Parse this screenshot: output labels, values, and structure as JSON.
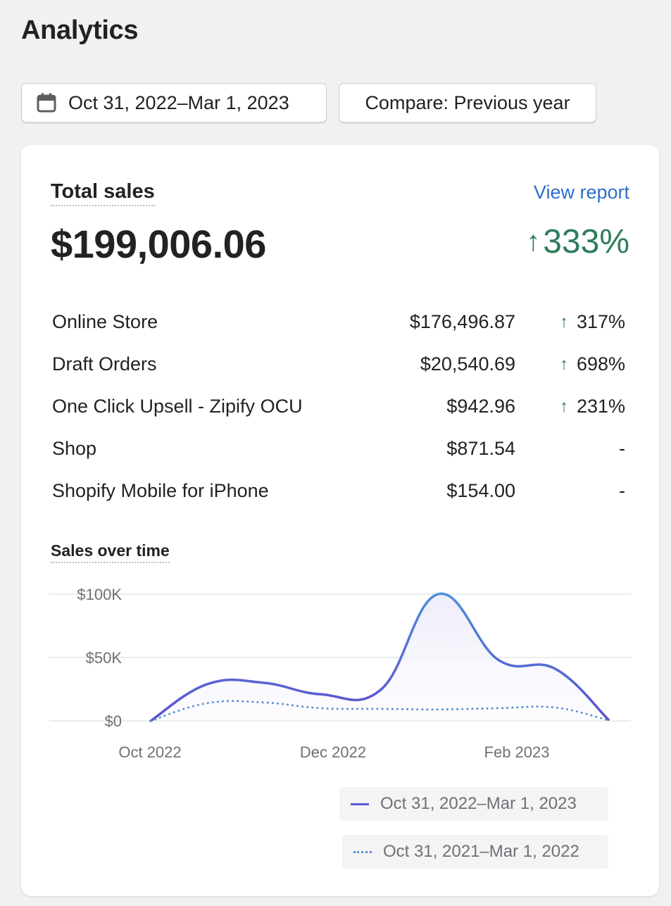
{
  "page": {
    "title": "Analytics"
  },
  "toolbar": {
    "date_range_label": "Oct 31, 2022–Mar 1, 2023",
    "compare_label": "Compare: Previous year"
  },
  "card": {
    "title": "Total sales",
    "view_report": "View report",
    "total_value": "$199,006.06",
    "total_change_arrow": "↑",
    "total_change": "333%",
    "rows": [
      {
        "name": "Online Store",
        "value": "$176,496.87",
        "arrow": "↑",
        "change": "317%"
      },
      {
        "name": "Draft Orders",
        "value": "$20,540.69",
        "arrow": "↑",
        "change": "698%"
      },
      {
        "name": "One Click Upsell - Zipify OCU",
        "value": "$942.96",
        "arrow": "↑",
        "change": "231%"
      },
      {
        "name": "Shop",
        "value": "$871.54",
        "arrow": "",
        "change": "-"
      },
      {
        "name": "Shopify Mobile for iPhone",
        "value": "$154.00",
        "arrow": "",
        "change": "-"
      }
    ]
  },
  "chart_data": {
    "type": "line",
    "title": "Sales over time",
    "x_tick_labels": [
      "Oct 2022",
      "Dec 2022",
      "Feb 2023"
    ],
    "y_tick_labels": [
      "$100K",
      "$50K",
      "$0"
    ],
    "ylim": [
      0,
      100000
    ],
    "grid": true,
    "legend_placement": "bottom-right",
    "series": [
      {
        "name": "Oct 31, 2022–Mar 1, 2023",
        "style": "solid",
        "color": "#5c5bd2",
        "x": [
          "2022-10-31",
          "2022-11-15",
          "2022-11-30",
          "2022-12-15",
          "2022-12-31",
          "2023-01-15",
          "2023-01-31",
          "2023-02-15",
          "2023-03-01"
        ],
        "values": [
          0,
          29000,
          30000,
          21000,
          25000,
          100000,
          48000,
          41000,
          1000
        ]
      },
      {
        "name": "Oct 31, 2021–Mar 1, 2022",
        "style": "dotted",
        "color": "#5c8fd2",
        "x": [
          "2022-10-31",
          "2022-11-15",
          "2022-11-30",
          "2022-12-15",
          "2022-12-31",
          "2023-01-15",
          "2023-01-31",
          "2023-02-15",
          "2023-03-01"
        ],
        "values": [
          0,
          14000,
          14500,
          10000,
          9500,
          9000,
          10000,
          10500,
          500
        ]
      }
    ]
  }
}
